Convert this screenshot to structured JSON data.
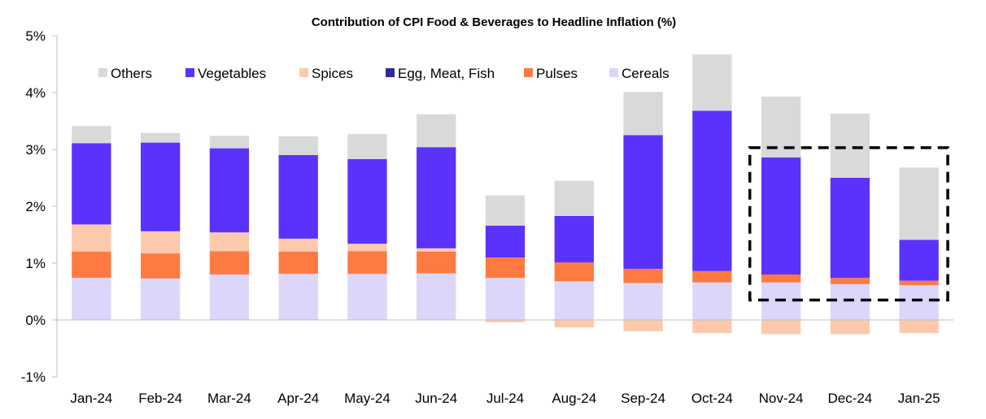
{
  "chart_data": {
    "type": "bar",
    "stacked": true,
    "title": "Contribution of CPI Food & Beverages to Headline Inflation (%)",
    "xlabel": "",
    "ylabel": "",
    "ylim": [
      -1,
      5
    ],
    "yticks": [
      -1,
      0,
      1,
      2,
      3,
      4,
      5
    ],
    "ytick_labels": [
      "-1%",
      "0%",
      "1%",
      "2%",
      "3%",
      "4%",
      "5%"
    ],
    "grid": false,
    "legend_position": "top-left",
    "categories": [
      "Jan-24",
      "Feb-24",
      "Mar-24",
      "Apr-24",
      "May-24",
      "Jun-24",
      "Jul-24",
      "Aug-24",
      "Sep-24",
      "Oct-24",
      "Nov-24",
      "Dec-24",
      "Jan-25"
    ],
    "series": [
      {
        "name": "Cereals",
        "color": "#dcd6fb",
        "values": [
          0.74,
          0.73,
          0.8,
          0.81,
          0.81,
          0.82,
          0.74,
          0.68,
          0.65,
          0.66,
          0.66,
          0.63,
          0.61
        ]
      },
      {
        "name": "Pulses",
        "color": "#fe7a42",
        "values": [
          0.46,
          0.44,
          0.41,
          0.39,
          0.4,
          0.38,
          0.36,
          0.33,
          0.25,
          0.2,
          0.14,
          0.11,
          0.08
        ]
      },
      {
        "name": "Egg, Meat, Fish",
        "color": "#2e2a9e",
        "values": [
          0,
          0,
          0,
          0,
          0,
          0,
          0,
          0,
          0,
          0,
          0,
          0,
          0
        ]
      },
      {
        "name": "Spices",
        "color": "#fcc9ac",
        "values": [
          0.48,
          0.39,
          0.33,
          0.23,
          0.13,
          0.06,
          -0.04,
          -0.13,
          -0.2,
          -0.23,
          -0.25,
          -0.25,
          -0.23
        ]
      },
      {
        "name": "Vegetables",
        "color": "#5b32fb",
        "values": [
          1.43,
          1.56,
          1.48,
          1.47,
          1.49,
          1.78,
          0.56,
          0.82,
          2.35,
          2.82,
          2.06,
          1.76,
          0.72
        ]
      },
      {
        "name": "Others",
        "color": "#d9d9d9",
        "values": [
          0.3,
          0.17,
          0.22,
          0.33,
          0.44,
          0.58,
          0.53,
          0.62,
          0.76,
          0.99,
          1.07,
          1.13,
          1.27
        ]
      }
    ],
    "legend_order": [
      "Others",
      "Vegetables",
      "Spices",
      "Egg, Meat, Fish",
      "Pulses",
      "Cereals"
    ],
    "annotation": {
      "type": "dashed-box",
      "categories": [
        "Nov-24",
        "Dec-24",
        "Jan-25"
      ],
      "y_range": [
        0.35,
        3.03
      ]
    }
  }
}
